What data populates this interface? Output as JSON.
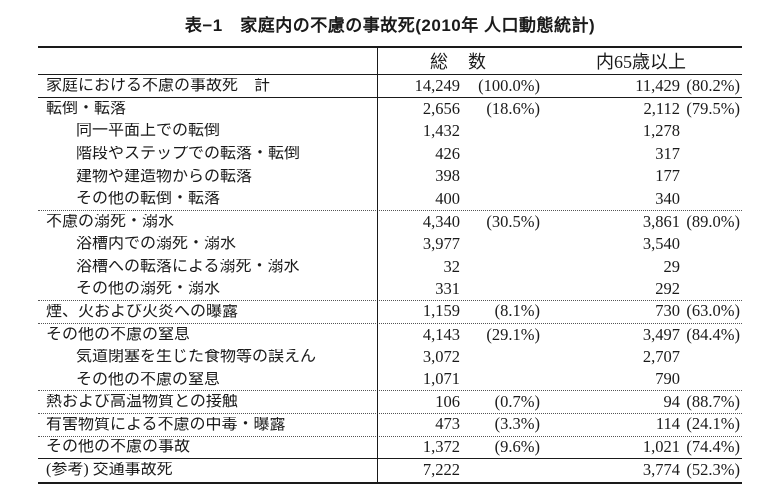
{
  "title": "表−1　家庭内の不慮の事故死(2010年 人口動態統計)",
  "table": {
    "header": {
      "total": "総　数",
      "elderly": "内65歳以上"
    },
    "rows": [
      {
        "label": "家庭における不慮の事故死　計",
        "indent": 0,
        "total": "14,249",
        "total_pct": "(100.0%)",
        "elderly": "11,429",
        "elderly_pct": "(80.2%)",
        "sep": "solid"
      },
      {
        "label": "転倒・転落",
        "indent": 0,
        "total": "2,656",
        "total_pct": "(18.6%)",
        "elderly": "2,112",
        "elderly_pct": "(79.5%)",
        "sep": "none"
      },
      {
        "label": "同一平面上での転倒",
        "indent": 1,
        "total": "1,432",
        "total_pct": "",
        "elderly": "1,278",
        "elderly_pct": "",
        "sep": "none"
      },
      {
        "label": "階段やステップでの転落・転倒",
        "indent": 1,
        "total": "426",
        "total_pct": "",
        "elderly": "317",
        "elderly_pct": "",
        "sep": "none"
      },
      {
        "label": "建物や建造物からの転落",
        "indent": 1,
        "total": "398",
        "total_pct": "",
        "elderly": "177",
        "elderly_pct": "",
        "sep": "none"
      },
      {
        "label": "その他の転倒・転落",
        "indent": 1,
        "total": "400",
        "total_pct": "",
        "elderly": "340",
        "elderly_pct": "",
        "sep": "dotted"
      },
      {
        "label": "不慮の溺死・溺水",
        "indent": 0,
        "total": "4,340",
        "total_pct": "(30.5%)",
        "elderly": "3,861",
        "elderly_pct": "(89.0%)",
        "sep": "none"
      },
      {
        "label": "浴槽内での溺死・溺水",
        "indent": 1,
        "total": "3,977",
        "total_pct": "",
        "elderly": "3,540",
        "elderly_pct": "",
        "sep": "none"
      },
      {
        "label": "浴槽への転落による溺死・溺水",
        "indent": 1,
        "total": "32",
        "total_pct": "",
        "elderly": "29",
        "elderly_pct": "",
        "sep": "none"
      },
      {
        "label": "その他の溺死・溺水",
        "indent": 1,
        "total": "331",
        "total_pct": "",
        "elderly": "292",
        "elderly_pct": "",
        "sep": "dotted"
      },
      {
        "label": "煙、火および火炎への曝露",
        "indent": 0,
        "total": "1,159",
        "total_pct": "(8.1%)",
        "elderly": "730",
        "elderly_pct": "(63.0%)",
        "sep": "dotted"
      },
      {
        "label": "その他の不慮の窒息",
        "indent": 0,
        "total": "4,143",
        "total_pct": "(29.1%)",
        "elderly": "3,497",
        "elderly_pct": "(84.4%)",
        "sep": "none"
      },
      {
        "label": "気道閉塞を生じた食物等の誤えん",
        "indent": 1,
        "total": "3,072",
        "total_pct": "",
        "elderly": "2,707",
        "elderly_pct": "",
        "sep": "none"
      },
      {
        "label": "その他の不慮の窒息",
        "indent": 1,
        "total": "1,071",
        "total_pct": "",
        "elderly": "790",
        "elderly_pct": "",
        "sep": "dotted"
      },
      {
        "label": "熱および高温物質との接触",
        "indent": 0,
        "total": "106",
        "total_pct": "(0.7%)",
        "elderly": "94",
        "elderly_pct": "(88.7%)",
        "sep": "dotted"
      },
      {
        "label": "有害物質による不慮の中毒・曝露",
        "indent": 0,
        "total": "473",
        "total_pct": "(3.3%)",
        "elderly": "114",
        "elderly_pct": "(24.1%)",
        "sep": "dotted"
      },
      {
        "label": "その他の不慮の事故",
        "indent": 0,
        "total": "1,372",
        "total_pct": "(9.6%)",
        "elderly": "1,021",
        "elderly_pct": "(74.4%)",
        "sep": "solid"
      },
      {
        "label": "(参考) 交通事故死",
        "indent": 0,
        "total": "7,222",
        "total_pct": "",
        "elderly": "3,774",
        "elderly_pct": "(52.3%)",
        "sep": "none"
      }
    ]
  }
}
